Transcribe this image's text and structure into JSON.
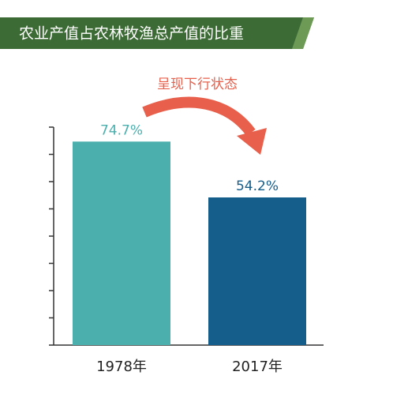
{
  "chart_data": {
    "type": "bar",
    "title": "农业产值占农林牧渔总产值的比重",
    "annotation": "呈现下行状态",
    "categories": [
      "1978年",
      "2017年"
    ],
    "values": [
      74.7,
      54.2
    ],
    "value_labels": [
      "74.7%",
      "54.2%"
    ],
    "colors": [
      "#4aafad",
      "#155d8b"
    ],
    "ylim": [
      0,
      80
    ],
    "yticks": [
      0,
      10,
      20,
      30,
      40,
      50,
      60,
      70,
      80
    ]
  }
}
